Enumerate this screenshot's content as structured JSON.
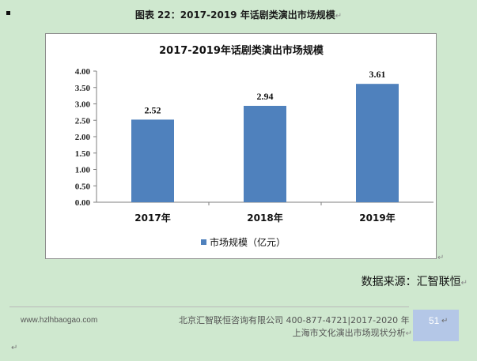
{
  "caption": {
    "text": "图表  22：2017-2019 年话剧类演出市场规模",
    "return_mark": "↵"
  },
  "chart_data": {
    "type": "bar",
    "title": "2017-2019年话剧类演出市场规模",
    "categories": [
      "2017年",
      "2018年",
      "2019年"
    ],
    "series": [
      {
        "name": "市场规模（亿元）",
        "values": [
          2.52,
          2.94,
          3.61
        ],
        "color": "#4f81bd"
      }
    ],
    "data_labels": [
      "2.52",
      "2.94",
      "3.61"
    ],
    "y_ticks": [
      "0.00",
      "0.50",
      "1.00",
      "1.50",
      "2.00",
      "2.50",
      "3.00",
      "3.50",
      "4.00"
    ],
    "ylim": [
      0,
      4
    ],
    "legend_position": "bottom-center",
    "grid": false
  },
  "chart_return_mark": "↵",
  "source": {
    "text": "数据来源：汇智联恒",
    "return_mark": "↵"
  },
  "footer": {
    "website": "www.hzlhbaogao.com",
    "company_line": "北京汇智联恒咨询有限公司  400-877-4721|2017-2020 年",
    "report_line": "上海市文化演出市场现状分析",
    "return_mark": "↵",
    "page_number": "51",
    "bottom_mark": "↵"
  }
}
